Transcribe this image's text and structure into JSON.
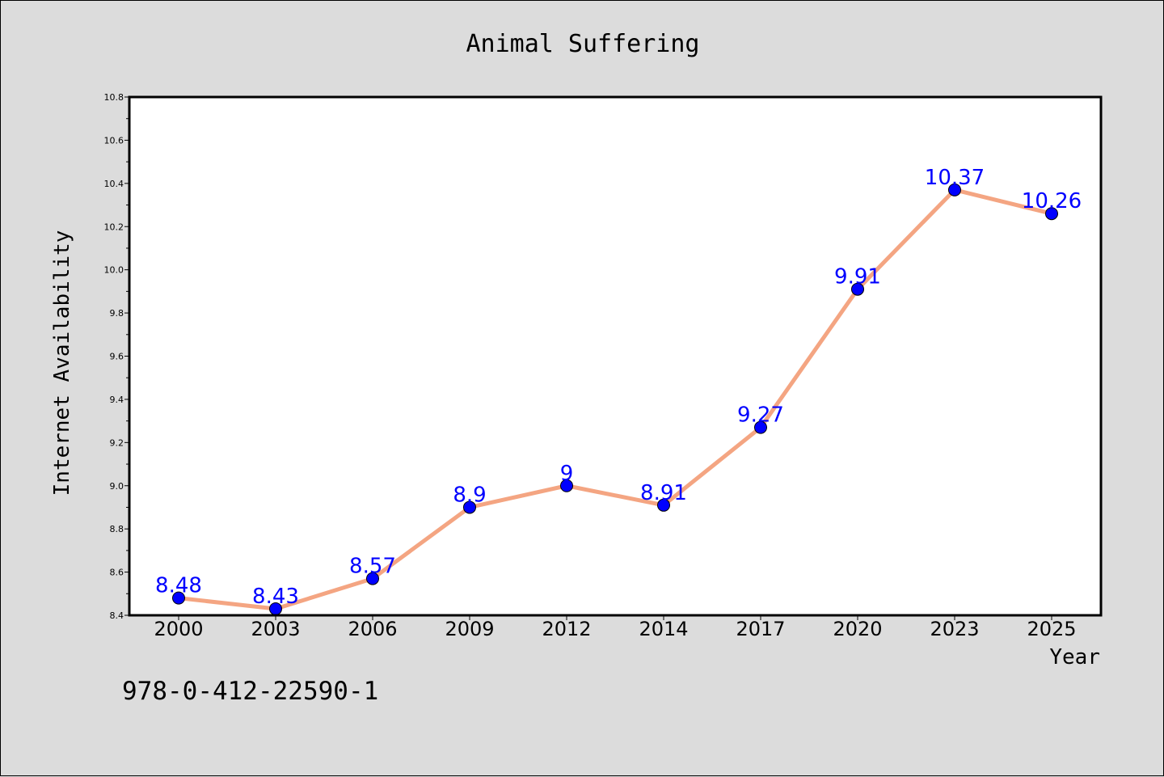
{
  "chart_data": {
    "type": "line",
    "title": "Animal Suffering",
    "xlabel": "Year",
    "ylabel": "Internet Availability",
    "categories": [
      "2000",
      "2003",
      "2006",
      "2009",
      "2012",
      "2014",
      "2017",
      "2020",
      "2023",
      "2025"
    ],
    "series": [
      {
        "values": [
          8.48,
          8.43,
          8.57,
          8.9,
          9.0,
          8.91,
          9.27,
          9.91,
          10.37,
          10.26
        ],
        "labels": [
          "8.48",
          "8.43",
          "8.57",
          "8.9",
          "9",
          "8.91",
          "9.27",
          "9.91",
          "10.37",
          "10.26"
        ],
        "line_color": "#f4a582",
        "marker_color": "#0000ff",
        "label_color": "#0000ff"
      }
    ],
    "ylim": [
      8.4,
      10.8
    ],
    "yticks": [
      "8.4",
      "8.6",
      "8.8",
      "9.0",
      "9.2",
      "9.4",
      "9.6",
      "9.8",
      "10.0",
      "10.2",
      "10.4",
      "10.6",
      "10.8"
    ],
    "grid": false,
    "legend": "none"
  },
  "footer_text": "978-0-412-22590-1"
}
